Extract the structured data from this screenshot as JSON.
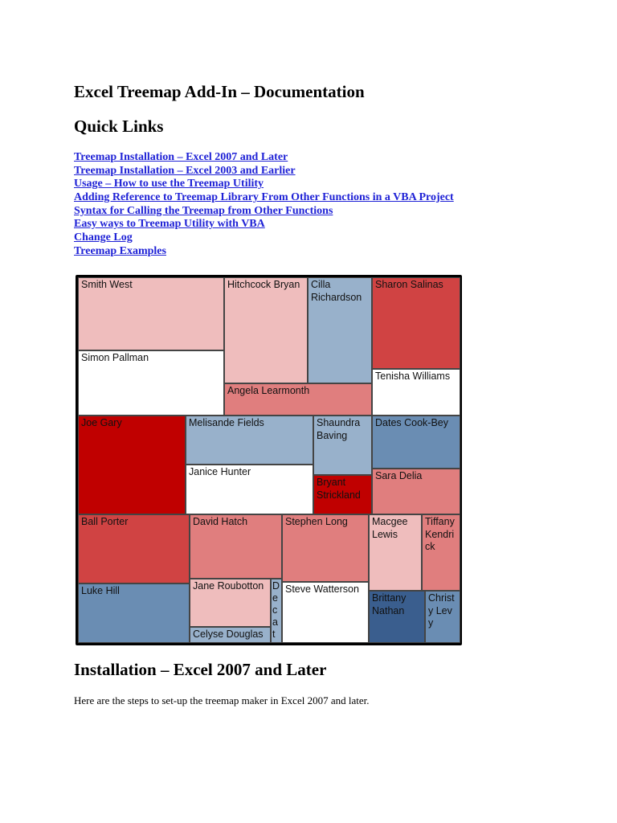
{
  "title": "Excel Treemap Add-In – Documentation",
  "quick_links_heading": "Quick Links",
  "links": [
    "Treemap Installation – Excel 2007 and Later",
    "Treemap Installation – Excel 2003 and Earlier",
    "Usage – How to use the Treemap Utility",
    "Adding Reference to Treemap Library From Other Functions in a VBA Project",
    "Syntax for Calling the Treemap from Other Functions",
    "Easy ways to Treemap Utility with VBA",
    "Change Log",
    "Treemap Examples"
  ],
  "chart_data": {
    "type": "treemap",
    "colors": {
      "light_red": "#efbdbd",
      "mid_red": "#e07e7e",
      "red": "#d04343",
      "dark_red": "#c00000",
      "white": "#ffffff",
      "light_blue": "#98b1cb",
      "mid_blue": "#6a8db3",
      "dark_blue": "#3a5e8e"
    },
    "cells": [
      {
        "label": "Smith West",
        "color": "light_red"
      },
      {
        "label": "Simon Pallman",
        "color": "white"
      },
      {
        "label": "Hitchcock Bryan",
        "color": "light_red"
      },
      {
        "label": "Cilla Richardson",
        "color": "light_blue"
      },
      {
        "label": "Angela Learmonth",
        "color": "mid_red"
      },
      {
        "label": "Sharon Salinas",
        "color": "red"
      },
      {
        "label": "Tenisha Williams",
        "color": "white"
      },
      {
        "label": "Joe Gary",
        "color": "dark_red"
      },
      {
        "label": "Melisande Fields",
        "color": "light_blue"
      },
      {
        "label": "Janice Hunter",
        "color": "white"
      },
      {
        "label": "Shaundra Baving",
        "color": "light_blue"
      },
      {
        "label": "Bryant Strickland",
        "color": "dark_red"
      },
      {
        "label": "Dates Cook-Bey",
        "color": "mid_blue"
      },
      {
        "label": "Sara Delia",
        "color": "mid_red"
      },
      {
        "label": "Ball Porter",
        "color": "red"
      },
      {
        "label": "Luke Hill",
        "color": "mid_blue"
      },
      {
        "label": "David Hatch",
        "color": "mid_red"
      },
      {
        "label": "Jane Roubotton",
        "color": "light_red"
      },
      {
        "label": "Celyse Douglas",
        "color": "light_blue"
      },
      {
        "label": "Decat",
        "color": "light_blue"
      },
      {
        "label": "Stephen Long",
        "color": "mid_red"
      },
      {
        "label": "Steve Watterson",
        "color": "white"
      },
      {
        "label": "Macgee Lewis",
        "color": "light_red"
      },
      {
        "label": "Tiffany Kendrick",
        "color": "mid_red"
      },
      {
        "label": "Brittany Nathan",
        "color": "dark_blue"
      },
      {
        "label": "Christy Levy",
        "color": "mid_blue"
      }
    ]
  },
  "installation_heading": "Installation – Excel 2007 and Later",
  "installation_text": "Here are the steps to set-up the treemap maker in Excel 2007 and later."
}
